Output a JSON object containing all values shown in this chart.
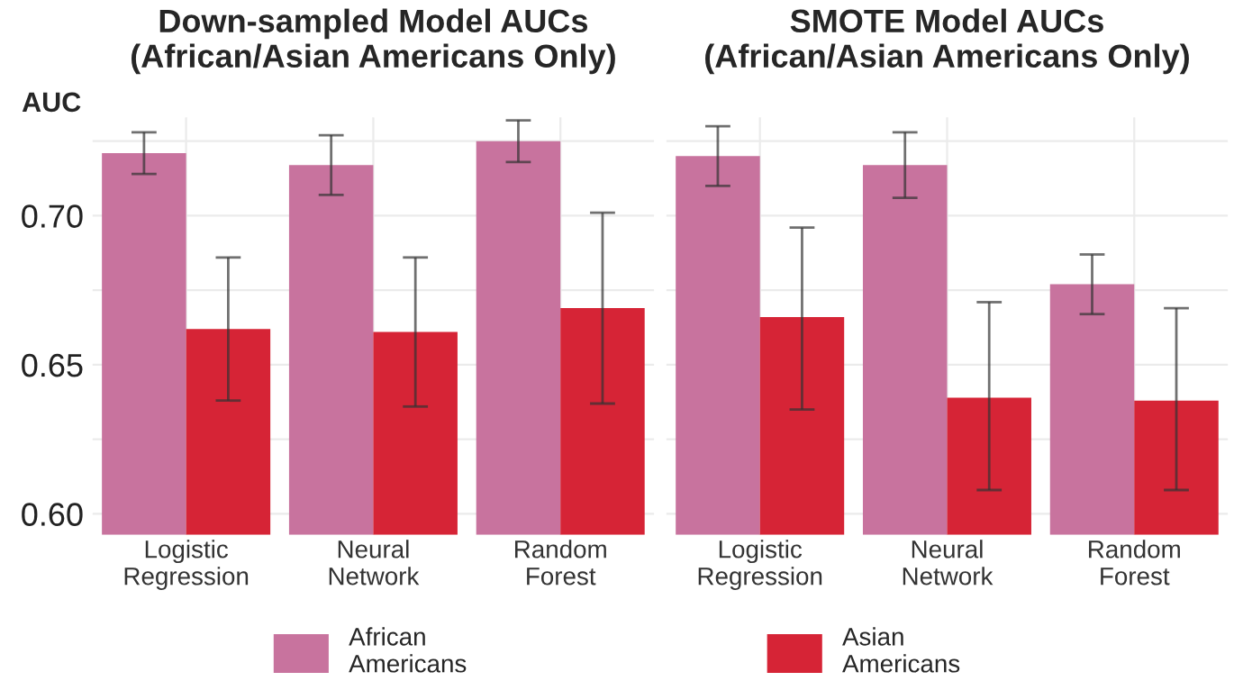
{
  "chart_data": [
    {
      "type": "bar",
      "title": "Down-sampled Model AUCs\n(African/Asian Americans Only)",
      "ylabel": "AUC",
      "categories": [
        "Logistic Regression",
        "Neural Network",
        "Random Forest"
      ],
      "series": [
        {
          "name": "African Americans",
          "color": "#c8739e",
          "values": [
            0.721,
            0.717,
            0.725
          ],
          "errors": [
            [
              0.714,
              0.728
            ],
            [
              0.707,
              0.727
            ],
            [
              0.718,
              0.732
            ]
          ]
        },
        {
          "name": "Asian Americans",
          "color": "#d62436",
          "values": [
            0.662,
            0.661,
            0.669
          ],
          "errors": [
            [
              0.638,
              0.686
            ],
            [
              0.636,
              0.686
            ],
            [
              0.637,
              0.701
            ]
          ]
        }
      ],
      "ylim": [
        0.593,
        0.733
      ],
      "yticks": [
        {
          "value": 0.6,
          "label": "0.60"
        },
        {
          "value": 0.625,
          "label": null
        },
        0.65,
        {
          "value": 0.675,
          "label": null
        },
        {
          "value": 0.7,
          "label": "0.70"
        },
        {
          "value": 0.725,
          "label": null
        }
      ],
      "grid": true,
      "legend": "bottom"
    },
    {
      "type": "bar",
      "title": "SMOTE Model AUCs\n(African/Asian Americans Only)",
      "categories": [
        "Logistic Regression",
        "Neural Network",
        "Random Forest"
      ],
      "series": [
        {
          "name": "African Americans",
          "color": "#c8739e",
          "values": [
            0.72,
            0.717,
            0.677
          ],
          "errors": [
            [
              0.71,
              0.73
            ],
            [
              0.706,
              0.728
            ],
            [
              0.667,
              0.687
            ]
          ]
        },
        {
          "name": "Asian Americans",
          "color": "#d62436",
          "values": [
            0.666,
            0.639,
            0.638
          ],
          "errors": [
            [
              0.635,
              0.696
            ],
            [
              0.608,
              0.671
            ],
            [
              0.608,
              0.669
            ]
          ]
        }
      ],
      "ylim": [
        0.593,
        0.733
      ],
      "yticks": [
        {
          "value": 0.6,
          "label": null
        },
        {
          "value": 0.625,
          "label": null
        },
        {
          "value": 0.65,
          "label": null
        },
        {
          "value": 0.675,
          "label": null
        },
        {
          "value": 0.7,
          "label": null
        },
        {
          "value": 0.725,
          "label": null
        }
      ],
      "grid": true,
      "tick_labels": "x",
      "legend": "bottom"
    }
  ]
}
